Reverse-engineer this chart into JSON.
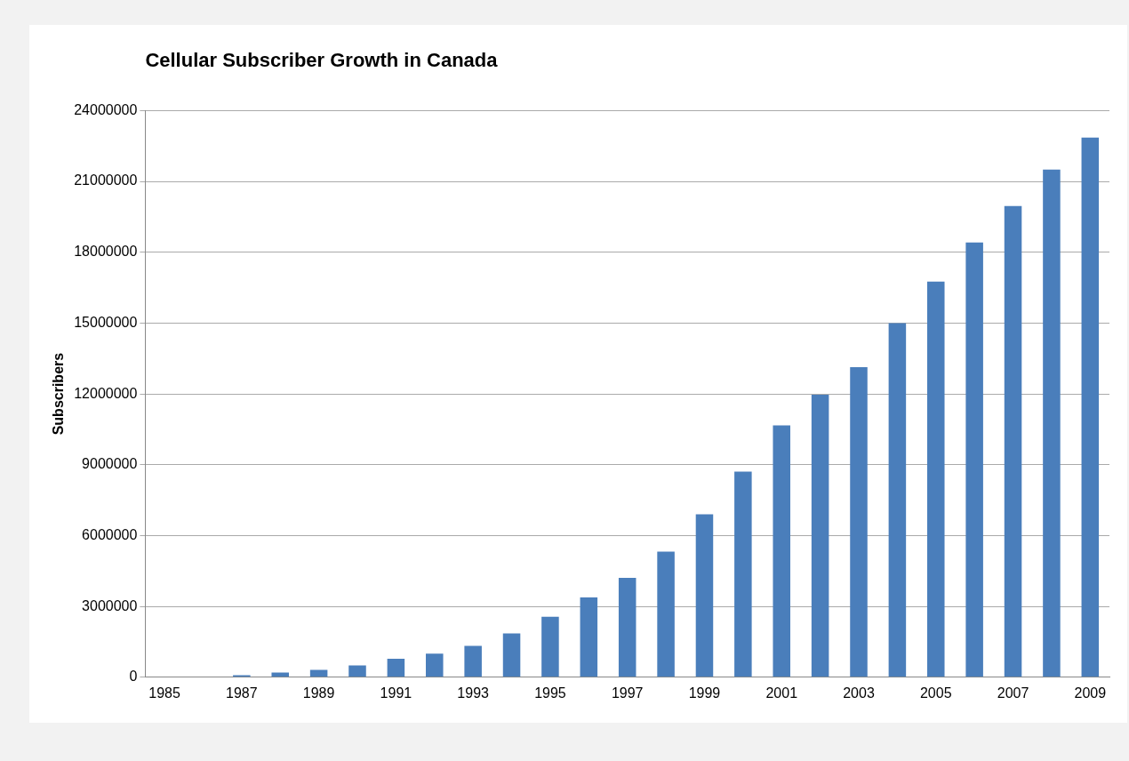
{
  "chart_data": {
    "type": "bar",
    "title": "Cellular Subscriber Growth in Canada",
    "ylabel": "Subscribers",
    "categories": [
      "1985",
      null,
      "1987",
      null,
      "1989",
      null,
      "1991",
      null,
      "1993",
      null,
      "1995",
      null,
      "1997",
      null,
      "1999",
      null,
      "2001",
      null,
      "2003",
      null,
      "2005",
      null,
      "2007",
      null,
      "2009"
    ],
    "values": [
      0,
      25000,
      90000,
      200000,
      310000,
      500000,
      780000,
      1000000,
      1330000,
      1860000,
      2560000,
      3380000,
      4210000,
      5320000,
      6900000,
      8710000,
      10670000,
      11970000,
      13130000,
      15000000,
      16760000,
      18410000,
      19960000,
      21500000,
      22860000
    ],
    "color": "#4a7ebb",
    "ylim": [
      0,
      24000000
    ],
    "yticks": [
      0,
      3000000,
      6000000,
      9000000,
      12000000,
      15000000,
      18000000,
      21000000,
      24000000
    ],
    "grid": "y"
  }
}
